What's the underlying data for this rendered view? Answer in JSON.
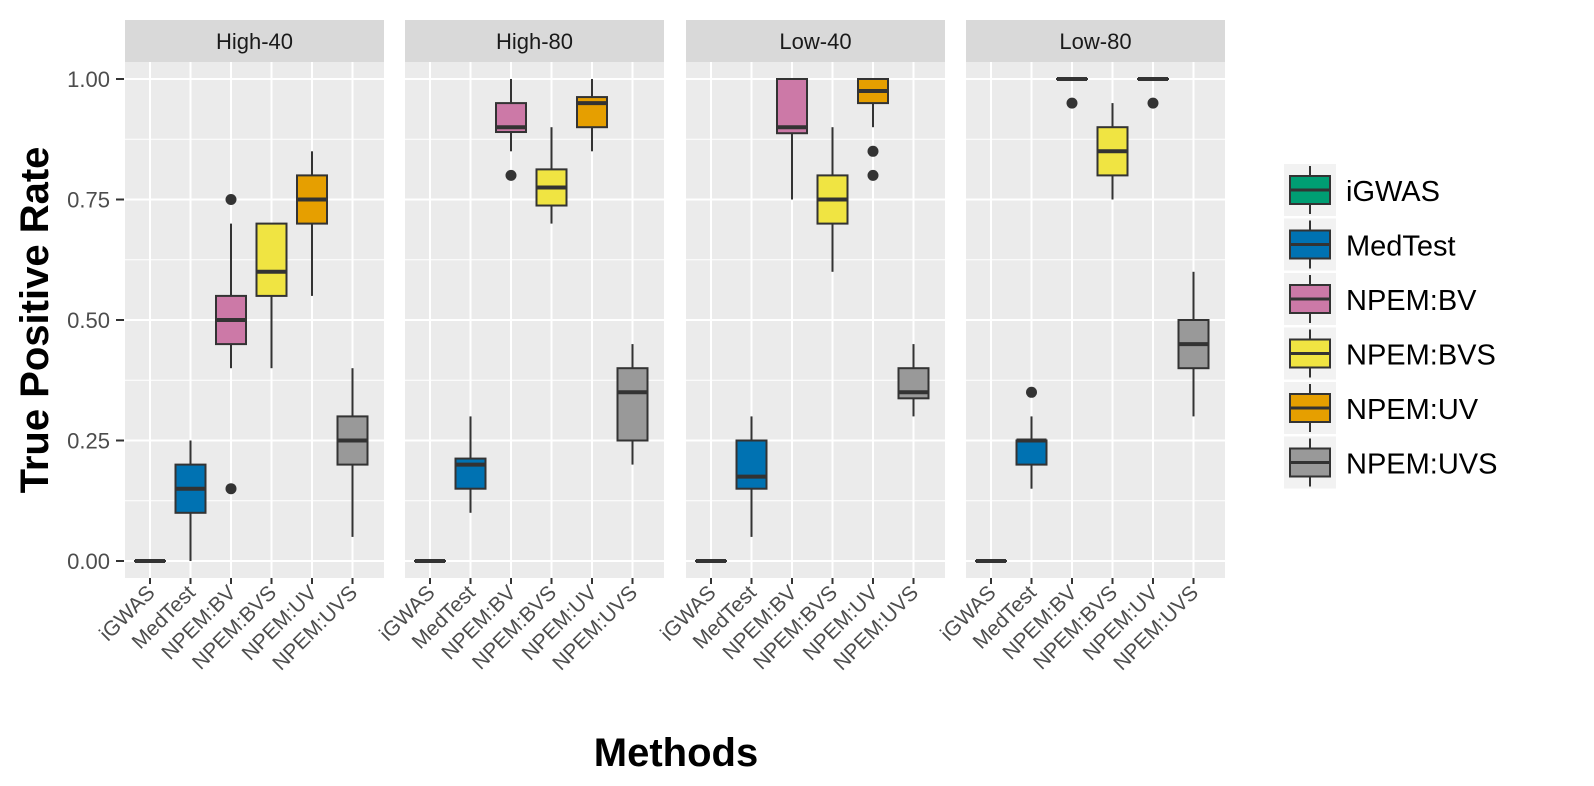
{
  "chart_data": {
    "type": "boxplot",
    "xlabel": "Methods",
    "ylabel": "True Positive Rate",
    "ylim": [
      0,
      1
    ],
    "yticks": [
      "0.00",
      "0.25",
      "0.50",
      "0.75",
      "1.00"
    ],
    "ytick_values": [
      0,
      0.25,
      0.5,
      0.75,
      1.0
    ],
    "grid": true,
    "legend_position": "right",
    "categories": [
      "iGWAS",
      "MedTest",
      "NPEM:BV",
      "NPEM:BVS",
      "NPEM:UV",
      "NPEM:UVS"
    ],
    "colors": [
      "#009E73",
      "#0072B2",
      "#CC79A7",
      "#F0E442",
      "#E69F00",
      "#999999"
    ],
    "facets": [
      {
        "label": "High-40",
        "boxes": [
          {
            "min": 0,
            "q1": 0,
            "median": 0,
            "q3": 0,
            "max": 0,
            "outliers": []
          },
          {
            "min": 0,
            "q1": 0.1,
            "median": 0.15,
            "q3": 0.2,
            "max": 0.25,
            "outliers": []
          },
          {
            "min": 0.4,
            "q1": 0.45,
            "median": 0.5,
            "q3": 0.55,
            "max": 0.7,
            "outliers": [
              0.75,
              0.15
            ]
          },
          {
            "min": 0.4,
            "q1": 0.55,
            "median": 0.6,
            "q3": 0.7,
            "max": 0.7,
            "outliers": []
          },
          {
            "min": 0.55,
            "q1": 0.7,
            "median": 0.75,
            "q3": 0.8,
            "max": 0.85,
            "outliers": []
          },
          {
            "min": 0.05,
            "q1": 0.2,
            "median": 0.25,
            "q3": 0.3,
            "max": 0.4,
            "outliers": []
          }
        ]
      },
      {
        "label": "High-80",
        "boxes": [
          {
            "min": 0,
            "q1": 0,
            "median": 0,
            "q3": 0,
            "max": 0,
            "outliers": []
          },
          {
            "min": 0.1,
            "q1": 0.15,
            "median": 0.2,
            "q3": 0.2125,
            "max": 0.3,
            "outliers": []
          },
          {
            "min": 0.85,
            "q1": 0.89,
            "median": 0.9,
            "q3": 0.95,
            "max": 1.0,
            "outliers": [
              0.8
            ]
          },
          {
            "min": 0.7,
            "q1": 0.7375,
            "median": 0.775,
            "q3": 0.8125,
            "max": 0.9,
            "outliers": []
          },
          {
            "min": 0.85,
            "q1": 0.9,
            "median": 0.95,
            "q3": 0.9625,
            "max": 1.0,
            "outliers": []
          },
          {
            "min": 0.2,
            "q1": 0.25,
            "median": 0.35,
            "q3": 0.4,
            "max": 0.45,
            "outliers": []
          }
        ]
      },
      {
        "label": "Low-40",
        "boxes": [
          {
            "min": 0,
            "q1": 0,
            "median": 0,
            "q3": 0,
            "max": 0,
            "outliers": []
          },
          {
            "min": 0.05,
            "q1": 0.15,
            "median": 0.175,
            "q3": 0.25,
            "max": 0.3,
            "outliers": []
          },
          {
            "min": 0.75,
            "q1": 0.8875,
            "median": 0.9,
            "q3": 1.0,
            "max": 1.0,
            "outliers": []
          },
          {
            "min": 0.6,
            "q1": 0.7,
            "median": 0.75,
            "q3": 0.8,
            "max": 0.9,
            "outliers": []
          },
          {
            "min": 0.9,
            "q1": 0.95,
            "median": 0.975,
            "q3": 1.0,
            "max": 1.0,
            "outliers": [
              0.85,
              0.8
            ]
          },
          {
            "min": 0.3,
            "q1": 0.3375,
            "median": 0.35,
            "q3": 0.4,
            "max": 0.45,
            "outliers": []
          }
        ]
      },
      {
        "label": "Low-80",
        "boxes": [
          {
            "min": 0,
            "q1": 0,
            "median": 0,
            "q3": 0,
            "max": 0,
            "outliers": []
          },
          {
            "min": 0.15,
            "q1": 0.2,
            "median": 0.25,
            "q3": 0.25,
            "max": 0.3,
            "outliers": [
              0.35
            ]
          },
          {
            "min": 1.0,
            "q1": 1.0,
            "median": 1.0,
            "q3": 1.0,
            "max": 1.0,
            "outliers": [
              0.95
            ]
          },
          {
            "min": 0.75,
            "q1": 0.8,
            "median": 0.85,
            "q3": 0.9,
            "max": 0.95,
            "outliers": []
          },
          {
            "min": 1.0,
            "q1": 1.0,
            "median": 1.0,
            "q3": 1.0,
            "max": 1.0,
            "outliers": [
              0.95
            ]
          },
          {
            "min": 0.3,
            "q1": 0.4,
            "median": 0.45,
            "q3": 0.5,
            "max": 0.6,
            "outliers": []
          }
        ]
      }
    ]
  }
}
